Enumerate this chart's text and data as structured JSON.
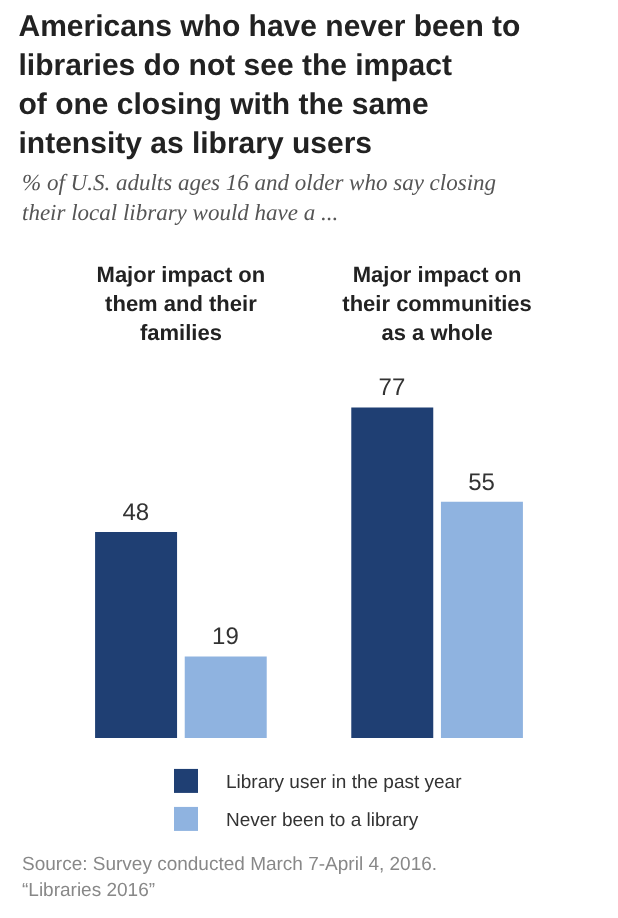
{
  "chart_data": {
    "type": "bar",
    "title": "Americans who have never been to libraries do not see the impact of one closing with the same intensity as library users",
    "subtitle": "% of U.S. adults ages 16 and older who say closing their local library would have a ...",
    "categories": [
      "Major impact on them and their families",
      "Major impact on their communities as a whole"
    ],
    "series": [
      {
        "name": "Library user in the past year",
        "color": "#1f3f73",
        "values": [
          48,
          77
        ]
      },
      {
        "name": "Never been to a library",
        "color": "#8fb3e0",
        "values": [
          19,
          55
        ]
      }
    ],
    "data_labels": true,
    "legend": "bottom",
    "annotations": [
      "Source: Survey conducted March 7-April 4, 2016.",
      "“Libraries 2016”"
    ]
  }
}
